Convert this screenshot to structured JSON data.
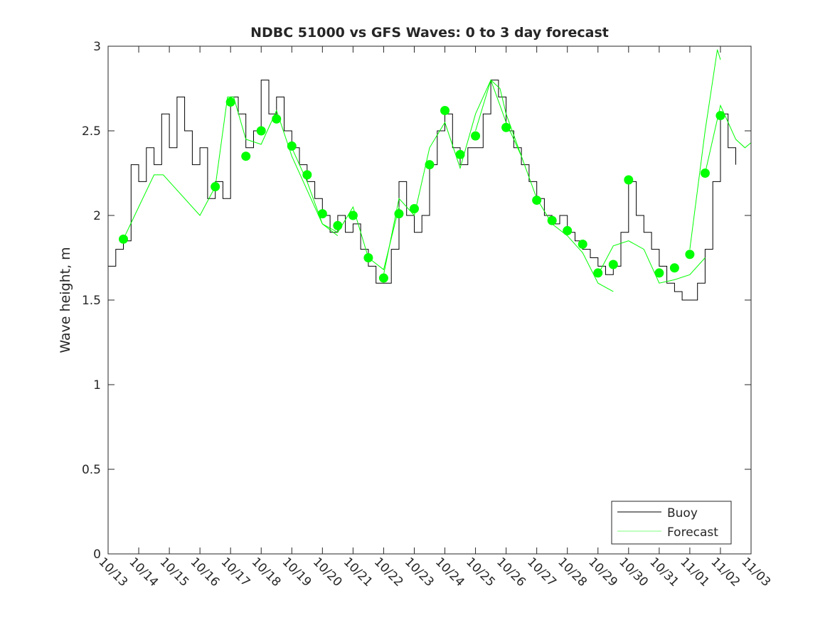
{
  "chart_data": {
    "type": "line",
    "title": "NDBC 51000 vs GFS Waves: 0 to 3 day forecast",
    "xlabel": "",
    "ylabel": "Wave height, m",
    "xlim": [
      0,
      21
    ],
    "ylim": [
      0,
      3
    ],
    "x_ticklabels": [
      "10/13",
      "10/14",
      "10/15",
      "10/16",
      "10/17",
      "10/18",
      "10/19",
      "10/20",
      "10/21",
      "10/22",
      "10/23",
      "10/24",
      "10/25",
      "10/26",
      "10/27",
      "10/28",
      "10/29",
      "10/30",
      "10/31",
      "11/01",
      "11/02",
      "11/03"
    ],
    "y_ticks": [
      0,
      0.5,
      1,
      1.5,
      2,
      2.5,
      3
    ],
    "y_ticklabels": [
      "0",
      "0.5",
      "1",
      "1.5",
      "2",
      "2.5",
      "3"
    ],
    "grid": false,
    "legend_position": "bottom-right",
    "legend": [
      "Buoy",
      "Forecast"
    ],
    "colors": {
      "buoy": "#000000",
      "forecast": "#00ff00"
    },
    "x_units": "days since 10/13",
    "buoy": {
      "name": "Buoy",
      "x": [
        0,
        0.25,
        0.5,
        0.75,
        1,
        1.25,
        1.5,
        1.75,
        2,
        2.25,
        2.5,
        2.75,
        3,
        3.25,
        3.5,
        3.75,
        4,
        4.25,
        4.5,
        4.75,
        5,
        5.25,
        5.5,
        5.75,
        6,
        6.25,
        6.5,
        6.75,
        7,
        7.25,
        7.5,
        7.75,
        8,
        8.25,
        8.5,
        8.75,
        9,
        9.25,
        9.5,
        9.75,
        10,
        10.25,
        10.5,
        10.75,
        11,
        11.25,
        11.5,
        11.75,
        12,
        12.25,
        12.5,
        12.75,
        13,
        13.25,
        13.5,
        13.75,
        14,
        14.25,
        14.5,
        14.75,
        15,
        15.25,
        15.5,
        15.75,
        16,
        16.25,
        16.5,
        16.75,
        17,
        17.25,
        17.5,
        17.75,
        18,
        18.25,
        18.5,
        18.75,
        19,
        19.25,
        19.5,
        19.75,
        20,
        20.25,
        20.5
      ],
      "y": [
        1.7,
        1.8,
        1.85,
        2.3,
        2.2,
        2.4,
        2.3,
        2.6,
        2.4,
        2.7,
        2.5,
        2.3,
        2.4,
        2.1,
        2.2,
        2.1,
        2.7,
        2.6,
        2.4,
        2.5,
        2.8,
        2.6,
        2.7,
        2.5,
        2.4,
        2.3,
        2.2,
        2.1,
        2.0,
        1.9,
        2.0,
        1.9,
        1.95,
        1.8,
        1.7,
        1.6,
        1.6,
        1.8,
        2.2,
        2.0,
        1.9,
        2.0,
        2.3,
        2.5,
        2.6,
        2.4,
        2.3,
        2.4,
        2.4,
        2.6,
        2.8,
        2.7,
        2.5,
        2.4,
        2.3,
        2.2,
        2.1,
        2.0,
        1.95,
        2.0,
        1.9,
        1.85,
        1.8,
        1.75,
        1.7,
        1.65,
        1.7,
        1.9,
        2.2,
        2.0,
        1.9,
        1.8,
        1.7,
        1.6,
        1.55,
        1.5,
        1.5,
        1.6,
        1.8,
        2.2,
        2.6,
        2.4,
        2.3
      ]
    },
    "forecast_analysis_points": {
      "name": "Forecast (0-day)",
      "x": [
        0.5,
        3.5,
        4,
        4.5,
        5,
        5.5,
        6,
        6.5,
        7,
        7.5,
        8,
        8.5,
        9,
        9.5,
        10,
        10.5,
        11,
        11.5,
        12,
        13,
        14,
        14.5,
        15,
        15.5,
        16,
        16.5,
        17,
        18,
        18.5,
        19,
        19.5,
        20
      ],
      "y": [
        1.86,
        2.17,
        2.67,
        2.35,
        2.5,
        2.57,
        2.41,
        2.24,
        2.01,
        1.94,
        2.0,
        1.75,
        1.63,
        2.01,
        2.04,
        2.3,
        2.62,
        2.36,
        2.47,
        2.52,
        2.09,
        1.97,
        1.91,
        1.83,
        1.66,
        1.71,
        2.21,
        1.66,
        1.69,
        1.77,
        2.25,
        2.59
      ]
    },
    "forecast_runs": [
      {
        "x": [
          0.5,
          1,
          1.5,
          1.8,
          2,
          3,
          3.5
        ],
        "y": [
          1.86,
          2.05,
          2.24,
          2.24,
          2.2,
          2.0,
          2.17
        ]
      },
      {
        "x": [
          3.5,
          3.9,
          4.1,
          4.5,
          5,
          5.5,
          6,
          6.5,
          7,
          7.5
        ],
        "y": [
          2.17,
          2.7,
          2.7,
          2.45,
          2.42,
          2.62,
          2.35,
          2.15,
          1.95,
          1.88
        ]
      },
      {
        "x": [
          6,
          6.5,
          7,
          7.5,
          8,
          8.5,
          9,
          9.5
        ],
        "y": [
          2.4,
          2.2,
          1.95,
          1.9,
          2.05,
          1.75,
          1.68,
          2.05
        ]
      },
      {
        "x": [
          9,
          9.5,
          10,
          10.5,
          11,
          11.5,
          12,
          12.5,
          13,
          13.5
        ],
        "y": [
          1.65,
          2.1,
          2.0,
          2.4,
          2.55,
          2.28,
          2.6,
          2.8,
          2.55,
          2.35
        ]
      },
      {
        "x": [
          12,
          12.5,
          12.8,
          13,
          13.5,
          14,
          14.5,
          15,
          15.5,
          16,
          16.5
        ],
        "y": [
          2.5,
          2.8,
          2.75,
          2.6,
          2.35,
          2.1,
          1.95,
          1.88,
          1.78,
          1.6,
          1.55
        ]
      },
      {
        "x": [
          16,
          16.5,
          17,
          17.5,
          18,
          18.5,
          19,
          19.5
        ],
        "y": [
          1.65,
          1.82,
          1.85,
          1.8,
          1.6,
          1.62,
          1.65,
          1.75
        ]
      },
      {
        "x": [
          19,
          19.5,
          19.9,
          20
        ],
        "y": [
          1.8,
          2.5,
          2.98,
          2.92
        ]
      },
      {
        "x": [
          19.5,
          20,
          20.5,
          20.8,
          21
        ],
        "y": [
          2.25,
          2.65,
          2.45,
          2.4,
          2.43
        ]
      }
    ]
  }
}
